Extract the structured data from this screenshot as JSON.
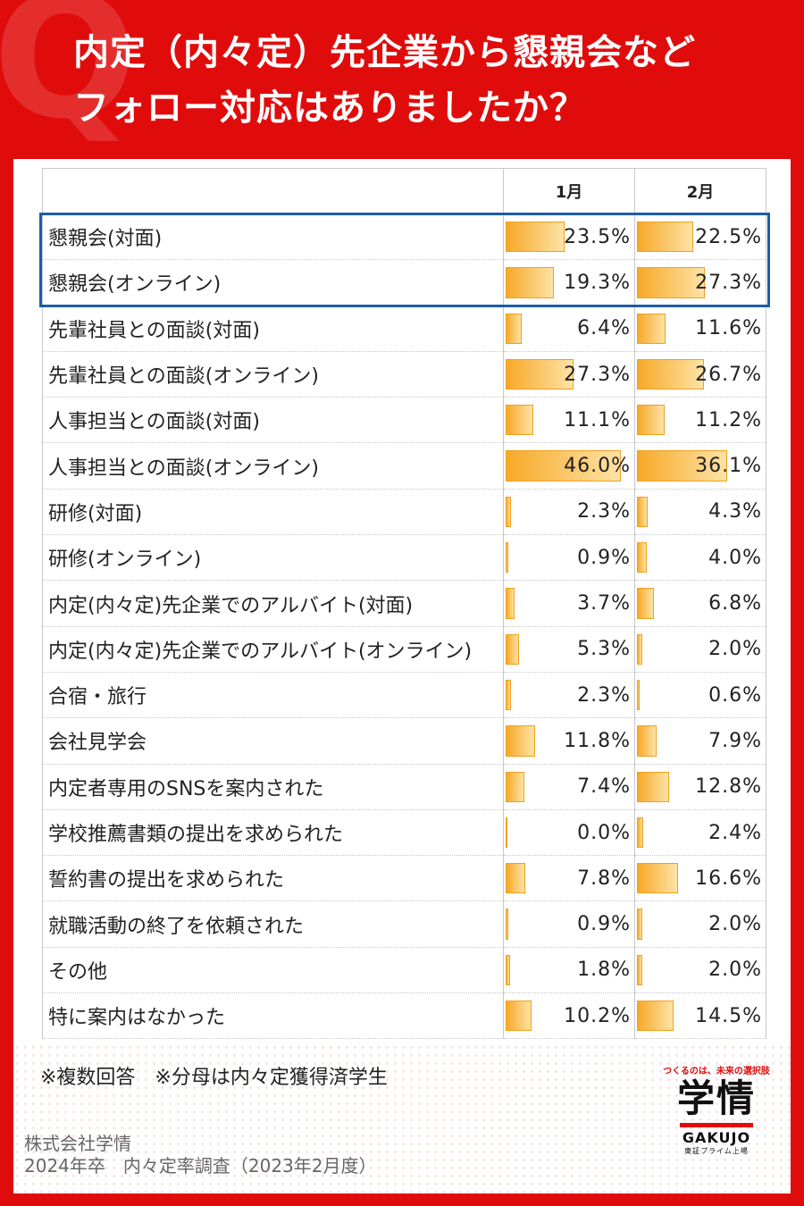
{
  "title": {
    "q_mark": "Q",
    "line1": "内定（内々定）先企業から懇親会など",
    "line2": "フォロー対応はありましたか？"
  },
  "chart_data": {
    "type": "table",
    "columns": [
      "1月",
      "2月"
    ],
    "unit": "%",
    "categories": [
      "懇親会(対面)",
      "懇親会(オンライン)",
      "先輩社員との面談(対面)",
      "先輩社員との面談(オンライン)",
      "人事担当との面談(対面)",
      "人事担当との面談(オンライン)",
      "研修(対面)",
      "研修(オンライン)",
      "内定(内々定)先企業でのアルバイト(対面)",
      "内定(内々定)先企業でのアルバイト(オンライン)",
      "合宿・旅行",
      "会社見学会",
      "内定者専用のSNSを案内された",
      "学校推薦書類の提出を求められた",
      "誓約書の提出を求められた",
      "就職活動の終了を依頼された",
      "その他",
      "特に案内はなかった"
    ],
    "series": [
      {
        "name": "1月",
        "values": [
          23.5,
          19.3,
          6.4,
          27.3,
          11.1,
          46.0,
          2.3,
          0.9,
          3.7,
          5.3,
          2.3,
          11.8,
          7.4,
          0.0,
          7.8,
          0.9,
          1.8,
          10.2
        ]
      },
      {
        "name": "2月",
        "values": [
          22.5,
          27.3,
          11.6,
          26.7,
          11.2,
          36.1,
          4.3,
          4.0,
          6.8,
          2.0,
          0.6,
          7.9,
          12.8,
          2.4,
          16.6,
          2.0,
          2.0,
          14.5
        ]
      }
    ],
    "highlight_rows": [
      0,
      1
    ],
    "highlight_color": "#1d5ca8",
    "bar_color": "#f7a928"
  },
  "footer": {
    "note": "※複数回答　※分母は内々定獲得済学生",
    "source_line1": "株式会社学情",
    "source_line2": "2024年卒　内々定率調査（2023年2月度）"
  },
  "logo": {
    "tagline": "つくるのは、未来の選択肢",
    "mark": "学情",
    "word": "GAKUJO",
    "sub": "東証プライム上場"
  }
}
